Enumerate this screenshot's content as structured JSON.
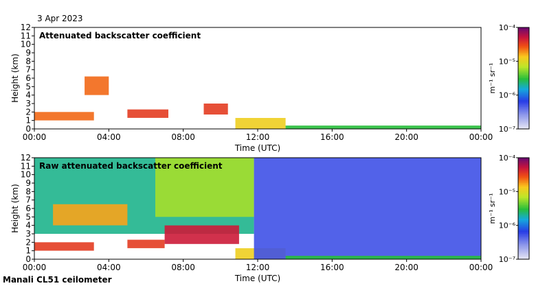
{
  "date": "3 Apr 2023",
  "caption": "Manali CL51 ceilometer",
  "chart_data": [
    {
      "type": "heatmap",
      "title": "Attenuated backscatter coefficient",
      "xlabel": "Time (UTC)",
      "ylabel": "Height (km)",
      "xlim": [
        0,
        24
      ],
      "ylim": [
        0,
        12
      ],
      "x_ticks": [
        "00:00",
        "04:00",
        "08:00",
        "12:00",
        "16:00",
        "20:00",
        "00:00"
      ],
      "y_ticks": [
        "0",
        "1",
        "2",
        "3",
        "4",
        "5",
        "6",
        "7",
        "8",
        "9",
        "10",
        "11",
        "12"
      ],
      "colorbar": {
        "unit": "m⁻¹ sr⁻¹",
        "scale": "log",
        "range": [
          1e-07,
          0.0001
        ],
        "tick_labels": [
          "10⁻⁴",
          "10⁻⁵",
          "10⁻⁶",
          "10⁻⁷"
        ]
      },
      "features": [
        {
          "t0": 0.0,
          "t1": 3.2,
          "h0": 1.0,
          "h1": 2.0,
          "intensity": 0.8
        },
        {
          "t0": 2.7,
          "t1": 4.0,
          "h0": 4.0,
          "h1": 6.2,
          "intensity": 0.8
        },
        {
          "t0": 5.0,
          "t1": 7.2,
          "h0": 1.3,
          "h1": 2.3,
          "intensity": 0.85
        },
        {
          "t0": 9.1,
          "t1": 10.4,
          "h0": 1.7,
          "h1": 3.0,
          "intensity": 0.85
        },
        {
          "t0": 10.8,
          "t1": 13.5,
          "h0": 0.0,
          "h1": 1.3,
          "intensity": 0.7
        },
        {
          "t0": 13.5,
          "t1": 24.0,
          "h0": 0.0,
          "h1": 0.4,
          "intensity": 0.5
        }
      ]
    },
    {
      "type": "heatmap",
      "title": "Raw attenuated backscatter coefficient",
      "xlabel": "Time (UTC)",
      "ylabel": "Height (km)",
      "xlim": [
        0,
        24
      ],
      "ylim": [
        0,
        12
      ],
      "x_ticks": [
        "00:00",
        "04:00",
        "08:00",
        "12:00",
        "16:00",
        "20:00",
        "00:00"
      ],
      "y_ticks": [
        "0",
        "1",
        "2",
        "3",
        "4",
        "5",
        "6",
        "7",
        "8",
        "9",
        "10",
        "11",
        "12"
      ],
      "colorbar": {
        "unit": "m⁻¹ sr⁻¹",
        "scale": "log",
        "range": [
          1e-07,
          0.0001
        ],
        "tick_labels": [
          "10⁻⁴",
          "10⁻⁵",
          "10⁻⁶",
          "10⁻⁷"
        ]
      },
      "features": [
        {
          "t0": 0.0,
          "t1": 11.8,
          "h0": 3.0,
          "h1": 12.0,
          "intensity": 0.45
        },
        {
          "t0": 6.5,
          "t1": 11.8,
          "h0": 5.0,
          "h1": 12.0,
          "intensity": 0.6
        },
        {
          "t0": 0.0,
          "t1": 3.2,
          "h0": 1.0,
          "h1": 2.0,
          "intensity": 0.85
        },
        {
          "t0": 1.0,
          "t1": 5.0,
          "h0": 4.0,
          "h1": 6.5,
          "intensity": 0.75
        },
        {
          "t0": 5.0,
          "t1": 7.0,
          "h0": 1.3,
          "h1": 2.3,
          "intensity": 0.85
        },
        {
          "t0": 7.0,
          "t1": 11.0,
          "h0": 1.8,
          "h1": 4.0,
          "intensity": 0.9
        },
        {
          "t0": 10.8,
          "t1": 13.5,
          "h0": 0.0,
          "h1": 1.3,
          "intensity": 0.7
        },
        {
          "t0": 11.8,
          "t1": 24.0,
          "h0": 0.0,
          "h1": 12.0,
          "intensity": 0.25
        },
        {
          "t0": 13.5,
          "t1": 24.0,
          "h0": 0.0,
          "h1": 0.4,
          "intensity": 0.5
        }
      ]
    }
  ]
}
